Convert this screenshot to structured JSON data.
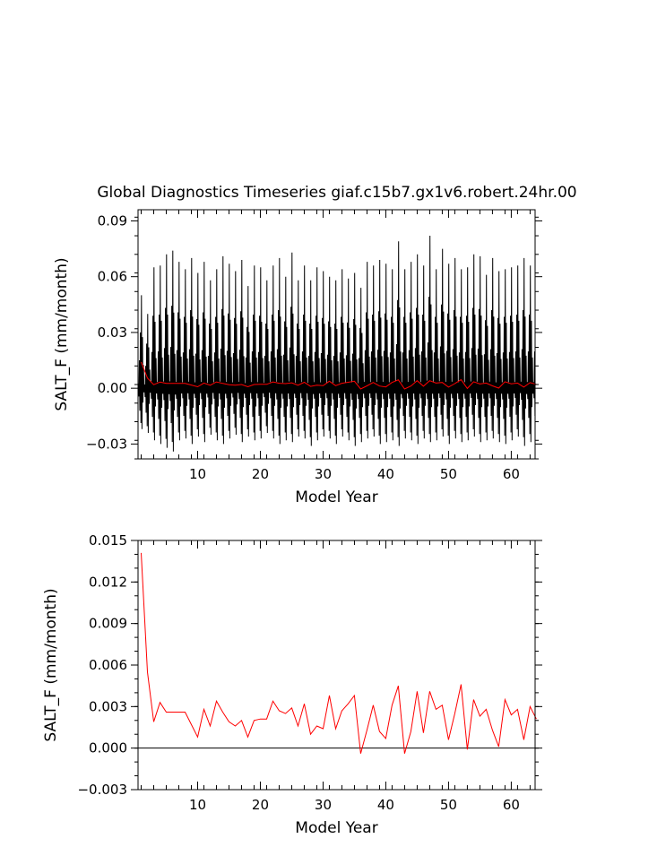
{
  "chart_data": [
    {
      "type": "line",
      "title": "Global Diagnostics Timeseries giaf.c15b7.gx1v6.robert.24hr.00",
      "xlabel": "Model Year",
      "ylabel": "SALT_F (mm/month)",
      "xlim": [
        0.5,
        63.8
      ],
      "ylim": [
        -0.038,
        0.096
      ],
      "xticks": [
        10,
        20,
        30,
        40,
        50,
        60
      ],
      "xtick_labels": [
        "10",
        "20",
        "30",
        "40",
        "50",
        "60"
      ],
      "yticks": [
        -0.03,
        0.0,
        0.03,
        0.06,
        0.09
      ],
      "ytick_labels": [
        "−0.03",
        "0.00",
        "0.03",
        "0.06",
        "0.09"
      ],
      "zero_line": true,
      "grid": false,
      "series": [
        {
          "color": "#000000",
          "description": "monthly values, years 1-64",
          "peak_values": [
            0.05,
            0.04,
            0.065,
            0.066,
            0.072,
            0.074,
            0.068,
            0.064,
            0.07,
            0.062,
            0.068,
            0.058,
            0.064,
            0.071,
            0.067,
            0.063,
            0.069,
            0.055,
            0.066,
            0.065,
            0.058,
            0.066,
            0.07,
            0.06,
            0.073,
            0.058,
            0.066,
            0.058,
            0.065,
            0.063,
            0.06,
            0.058,
            0.064,
            0.059,
            0.062,
            0.054,
            0.068,
            0.066,
            0.069,
            0.067,
            0.064,
            0.079,
            0.064,
            0.068,
            0.072,
            0.066,
            0.082,
            0.064,
            0.075,
            0.067,
            0.07,
            0.064,
            0.065,
            0.072,
            0.071,
            0.061,
            0.07,
            0.063,
            0.064,
            0.065,
            0.066,
            0.07,
            0.066,
            0.066
          ],
          "trough_values": [
            -0.022,
            -0.024,
            -0.028,
            -0.03,
            -0.032,
            -0.034,
            -0.028,
            -0.027,
            -0.03,
            -0.026,
            -0.029,
            -0.025,
            -0.028,
            -0.03,
            -0.027,
            -0.025,
            -0.029,
            -0.026,
            -0.028,
            -0.027,
            -0.024,
            -0.027,
            -0.03,
            -0.028,
            -0.029,
            -0.026,
            -0.027,
            -0.031,
            -0.028,
            -0.026,
            -0.027,
            -0.03,
            -0.026,
            -0.028,
            -0.031,
            -0.029,
            -0.027,
            -0.026,
            -0.03,
            -0.029,
            -0.028,
            -0.031,
            -0.027,
            -0.028,
            -0.03,
            -0.027,
            -0.029,
            -0.028,
            -0.026,
            -0.03,
            -0.027,
            -0.029,
            -0.028,
            -0.026,
            -0.029,
            -0.028,
            -0.027,
            -0.029,
            -0.03,
            -0.028,
            -0.026,
            -0.031,
            -0.029,
            -0.027
          ]
        },
        {
          "color": "#ff0000",
          "description": "annual mean, years 1-64",
          "values": [
            0.0141,
            0.0055,
            0.0019,
            0.0033,
            0.0026,
            0.0026,
            0.0026,
            0.0026,
            0.0017,
            0.0008,
            0.0028,
            0.0016,
            0.0034,
            0.0026,
            0.0019,
            0.0016,
            0.002,
            0.0008,
            0.002,
            0.0021,
            0.0021,
            0.0034,
            0.0027,
            0.0025,
            0.0029,
            0.0016,
            0.0032,
            0.001,
            0.0016,
            0.0014,
            0.0038,
            0.0014,
            0.0027,
            0.0032,
            0.0038,
            -0.0004,
            0.0013,
            0.0031,
            0.0012,
            0.0007,
            0.0031,
            0.0045,
            -0.0004,
            0.0012,
            0.0041,
            0.0011,
            0.0041,
            0.0028,
            0.0031,
            0.0006,
            0.0025,
            0.0046,
            -0.0001,
            0.0035,
            0.0023,
            0.0028,
            0.0013,
            0.0001,
            0.0035,
            0.0024,
            0.0028,
            0.0006,
            0.003,
            0.0021
          ]
        }
      ]
    },
    {
      "type": "line",
      "xlabel": "Model Year",
      "ylabel": "SALT_F (mm/month)",
      "xlim": [
        0.5,
        63.8
      ],
      "ylim": [
        -0.003,
        0.015
      ],
      "xticks": [
        10,
        20,
        30,
        40,
        50,
        60
      ],
      "xtick_labels": [
        "10",
        "20",
        "30",
        "40",
        "50",
        "60"
      ],
      "yticks": [
        -0.003,
        0.0,
        0.003,
        0.006,
        0.009,
        0.012,
        0.015
      ],
      "ytick_labels": [
        "−0.003",
        "0.000",
        "0.003",
        "0.006",
        "0.009",
        "0.012",
        "0.015"
      ],
      "zero_line": true,
      "grid": false,
      "series": [
        {
          "color": "#ff0000",
          "description": "annual mean, years 1-64",
          "values": [
            0.0141,
            0.0055,
            0.0019,
            0.0033,
            0.0026,
            0.0026,
            0.0026,
            0.0026,
            0.0017,
            0.0008,
            0.0028,
            0.0016,
            0.0034,
            0.0026,
            0.0019,
            0.0016,
            0.002,
            0.0008,
            0.002,
            0.0021,
            0.0021,
            0.0034,
            0.0027,
            0.0025,
            0.0029,
            0.0016,
            0.0032,
            0.001,
            0.0016,
            0.0014,
            0.0038,
            0.0014,
            0.0027,
            0.0032,
            0.0038,
            -0.0004,
            0.0013,
            0.0031,
            0.0012,
            0.0007,
            0.0031,
            0.0045,
            -0.0004,
            0.0012,
            0.0041,
            0.0011,
            0.0041,
            0.0028,
            0.0031,
            0.0006,
            0.0025,
            0.0046,
            -0.0001,
            0.0035,
            0.0023,
            0.0028,
            0.0013,
            0.0001,
            0.0035,
            0.0024,
            0.0028,
            0.0006,
            0.003,
            0.0021
          ]
        }
      ]
    }
  ]
}
